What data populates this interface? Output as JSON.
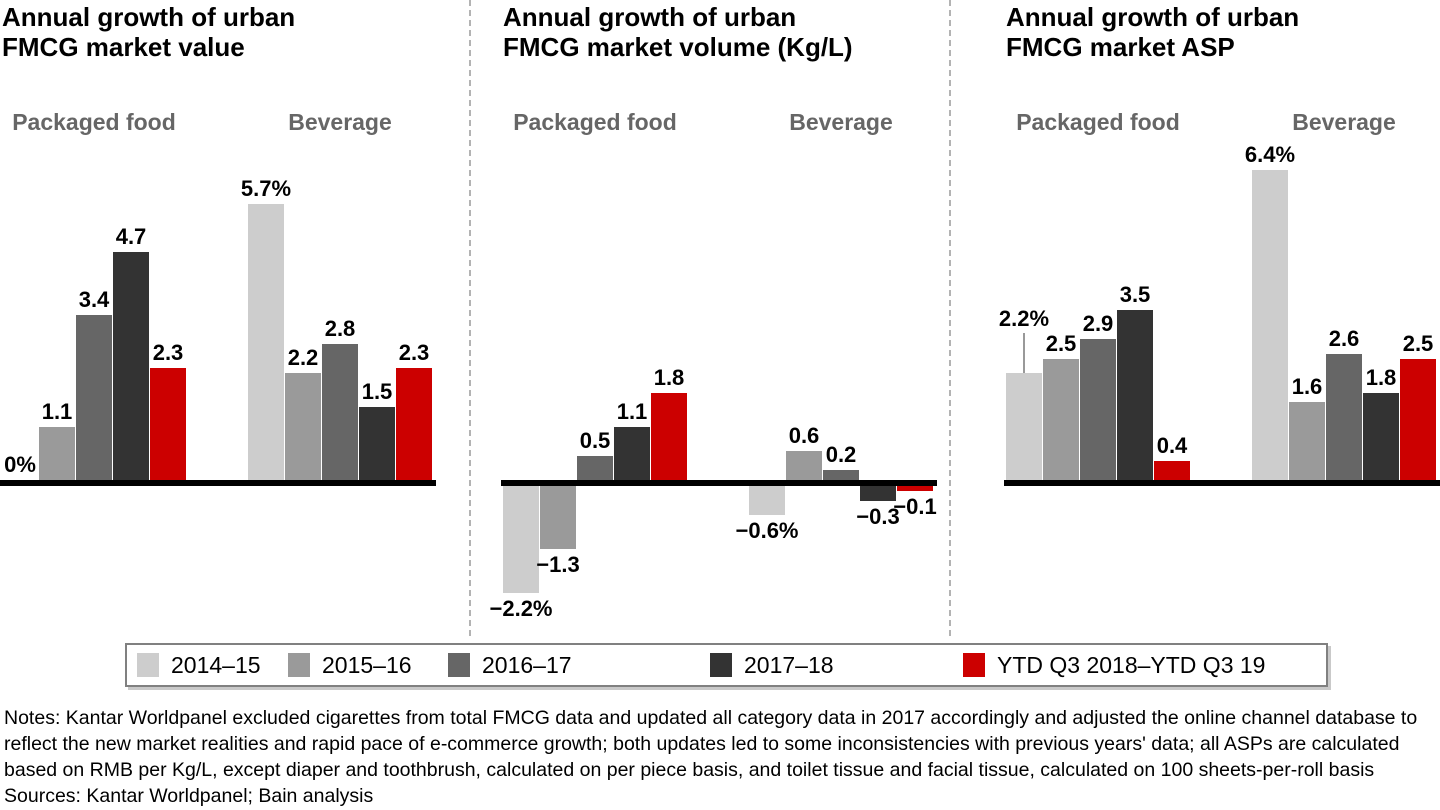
{
  "colors": {
    "series": [
      "#cdcdcd",
      "#9a9a9a",
      "#666666",
      "#333333",
      "#cc0000"
    ],
    "baseline": "#000000",
    "divider": "#b3b3b3",
    "group_label": "#666666",
    "callout_line": "#999999"
  },
  "chart_data": [
    {
      "type": "bar",
      "title": "Annual growth of urban FMCG market value",
      "title_lines": [
        "Annual growth of urban",
        "FMCG market value"
      ],
      "unit": "%",
      "categories": [
        "Packaged food",
        "Beverage"
      ],
      "series": [
        {
          "name": "2014–15",
          "color": "#cdcdcd",
          "values": [
            0,
            5.7
          ],
          "labels": [
            "0%",
            "5.7%"
          ]
        },
        {
          "name": "2015–16",
          "color": "#9a9a9a",
          "values": [
            1.1,
            2.2
          ],
          "labels": [
            "1.1",
            "2.2"
          ]
        },
        {
          "name": "2016–17",
          "color": "#666666",
          "values": [
            3.4,
            2.8
          ],
          "labels": [
            "3.4",
            "2.8"
          ]
        },
        {
          "name": "2017–18",
          "color": "#333333",
          "values": [
            4.7,
            1.5
          ],
          "labels": [
            "4.7",
            "1.5"
          ]
        },
        {
          "name": "YTD Q3 2018–YTD Q3 19",
          "color": "#cc0000",
          "values": [
            2.3,
            2.3
          ],
          "labels": [
            "2.3",
            "2.3"
          ]
        }
      ],
      "callouts": []
    },
    {
      "type": "bar",
      "title": "Annual growth of urban FMCG market volume (Kg/L)",
      "title_lines": [
        "Annual growth of urban",
        "FMCG market volume (Kg/L)"
      ],
      "unit": "%",
      "categories": [
        "Packaged food",
        "Beverage"
      ],
      "series": [
        {
          "name": "2014–15",
          "color": "#cdcdcd",
          "values": [
            -2.2,
            -0.6
          ],
          "labels": [
            "−2.2%",
            "−0.6%"
          ]
        },
        {
          "name": "2015–16",
          "color": "#9a9a9a",
          "values": [
            -1.3,
            0.6
          ],
          "labels": [
            "−1.3",
            "0.6"
          ]
        },
        {
          "name": "2016–17",
          "color": "#666666",
          "values": [
            0.5,
            0.2
          ],
          "labels": [
            "0.5",
            "0.2"
          ]
        },
        {
          "name": "2017–18",
          "color": "#333333",
          "values": [
            1.1,
            -0.3
          ],
          "labels": [
            "1.1",
            "−0.3"
          ]
        },
        {
          "name": "YTD Q3 2018–YTD Q3 19",
          "color": "#cc0000",
          "values": [
            1.8,
            -0.1
          ],
          "labels": [
            "1.8",
            "−0.1"
          ]
        }
      ],
      "callouts": []
    },
    {
      "type": "bar",
      "title": "Annual growth of urban FMCG market ASP",
      "title_lines": [
        "Annual growth of urban",
        "FMCG market ASP"
      ],
      "unit": "%",
      "categories": [
        "Packaged food",
        "Beverage"
      ],
      "series": [
        {
          "name": "2014–15",
          "color": "#cdcdcd",
          "values": [
            2.2,
            6.4
          ],
          "labels": [
            "2.2%",
            "6.4%"
          ]
        },
        {
          "name": "2015–16",
          "color": "#9a9a9a",
          "values": [
            2.5,
            1.6
          ],
          "labels": [
            "2.5",
            "1.6"
          ]
        },
        {
          "name": "2016–17",
          "color": "#666666",
          "values": [
            2.9,
            2.6
          ],
          "labels": [
            "2.9",
            "2.6"
          ]
        },
        {
          "name": "2017–18",
          "color": "#333333",
          "values": [
            3.5,
            1.8
          ],
          "labels": [
            "3.5",
            "1.8"
          ]
        },
        {
          "name": "YTD Q3 2018–YTD Q3 19",
          "color": "#cc0000",
          "values": [
            0.4,
            2.5
          ],
          "labels": [
            "0.4",
            "2.5"
          ]
        }
      ],
      "callouts": [
        {
          "category": 0,
          "series": 0
        }
      ]
    }
  ],
  "legend": {
    "items": [
      {
        "label": "2014–15",
        "color": "#cdcdcd"
      },
      {
        "label": "2015–16",
        "color": "#9a9a9a"
      },
      {
        "label": "2016–17",
        "color": "#666666"
      },
      {
        "label": "2017–18",
        "color": "#333333"
      },
      {
        "label": "YTD Q3 2018–YTD Q3 19",
        "color": "#cc0000"
      }
    ]
  },
  "notes_lines": [
    "Notes: Kantar Worldpanel excluded cigarettes from total FMCG data and updated all category data in 2017 accordingly and adjusted the online channel database to",
    "reflect the new market realities and rapid pace of e-commerce growth; both updates led to some inconsistencies with previous years' data; all ASPs are calculated",
    "based on RMB per Kg/L, except diaper and toothbrush, calculated on per piece basis, and toilet tissue and facial tissue, calculated on 100 sheets-per-roll basis"
  ],
  "sources_line": "Sources: Kantar Worldpanel; Bain analysis"
}
